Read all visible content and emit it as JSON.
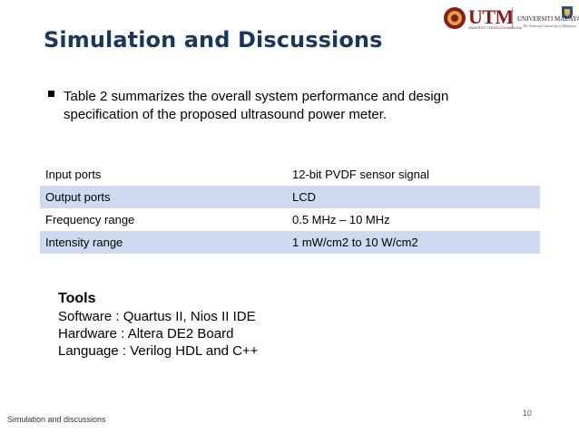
{
  "slide": {
    "title": "Simulation and Discussions",
    "bullet": "Table 2 summarizes the overall system performance and design specification of the proposed ultrasound power meter.",
    "table": [
      [
        "Input ports",
        "12-bit PVDF sensor signal"
      ],
      [
        "Output ports",
        "LCD"
      ],
      [
        "Frequency range",
        "0.5 MHz – 10 MHz"
      ],
      [
        "Intensity range",
        "1 mW/cm2 to 10 W/cm2"
      ]
    ],
    "tools": {
      "heading": "Tools",
      "lines": [
        "Software : Quartus II, Nios II IDE",
        "Hardware : Altera DE2 Board",
        "Language : Verilog HDL and C++"
      ]
    },
    "footer": "Simulation and discussions",
    "page_number": "10"
  },
  "logos": {
    "utm": "UTM",
    "utm_sub": "UNIVERSITI TEKNOLOGI MALAYSIA",
    "um": "UNIVERSITI MALAYA",
    "um_sub": "The National University of Malaysia"
  },
  "colors": {
    "title": "#17375e",
    "table_alt_row": "#cfdaf0",
    "utm_red": "#8b1a1a"
  }
}
